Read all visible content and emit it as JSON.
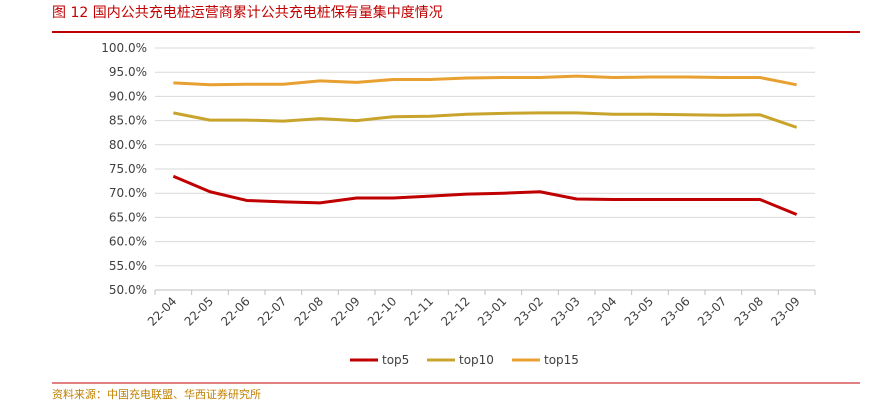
{
  "chart_data": {
    "type": "line",
    "title": "图 12 国内公共充电桩运营商累计公共充电桩保有量集中度情况",
    "source": "资料来源：中国充电联盟、华西证券研究所",
    "categories": [
      "22-04",
      "22-05",
      "22-06",
      "22-07",
      "22-08",
      "22-09",
      "22-10",
      "22-11",
      "22-12",
      "23-01",
      "23-02",
      "23-03",
      "23-04",
      "23-05",
      "23-06",
      "23-07",
      "23-08",
      "23-09"
    ],
    "series": [
      {
        "name": "top5",
        "color": "#c00000",
        "values": [
          73.5,
          70.3,
          68.5,
          68.2,
          68.0,
          69.0,
          69.0,
          69.4,
          69.8,
          70.0,
          70.3,
          68.8,
          68.7,
          68.7,
          68.7,
          68.7,
          68.7,
          65.6
        ]
      },
      {
        "name": "top10",
        "color": "#c8a42c",
        "values": [
          86.6,
          85.1,
          85.1,
          84.9,
          85.4,
          85.0,
          85.8,
          85.9,
          86.3,
          86.5,
          86.6,
          86.6,
          86.3,
          86.3,
          86.2,
          86.1,
          86.2,
          83.6
        ]
      },
      {
        "name": "top15",
        "color": "#e8a030",
        "values": [
          92.8,
          92.4,
          92.5,
          92.5,
          93.2,
          92.9,
          93.5,
          93.5,
          93.8,
          93.9,
          93.9,
          94.2,
          93.9,
          94.0,
          94.0,
          93.9,
          93.9,
          92.4
        ]
      }
    ],
    "ylim": [
      50,
      100
    ],
    "yticks": [
      {
        "value": 50,
        "label": "50.0%"
      },
      {
        "value": 55,
        "label": "55.0%"
      },
      {
        "value": 60,
        "label": "60.0%"
      },
      {
        "value": 65,
        "label": "65.0%"
      },
      {
        "value": 70,
        "label": "70.0%"
      },
      {
        "value": 75,
        "label": "75.0%"
      },
      {
        "value": 80,
        "label": "80.0%"
      },
      {
        "value": 85,
        "label": "85.0%"
      },
      {
        "value": 90,
        "label": "90.0%"
      },
      {
        "value": 95,
        "label": "95.0%"
      },
      {
        "value": 100,
        "label": "100.0%"
      }
    ],
    "grid": true,
    "legend": "bottom"
  }
}
